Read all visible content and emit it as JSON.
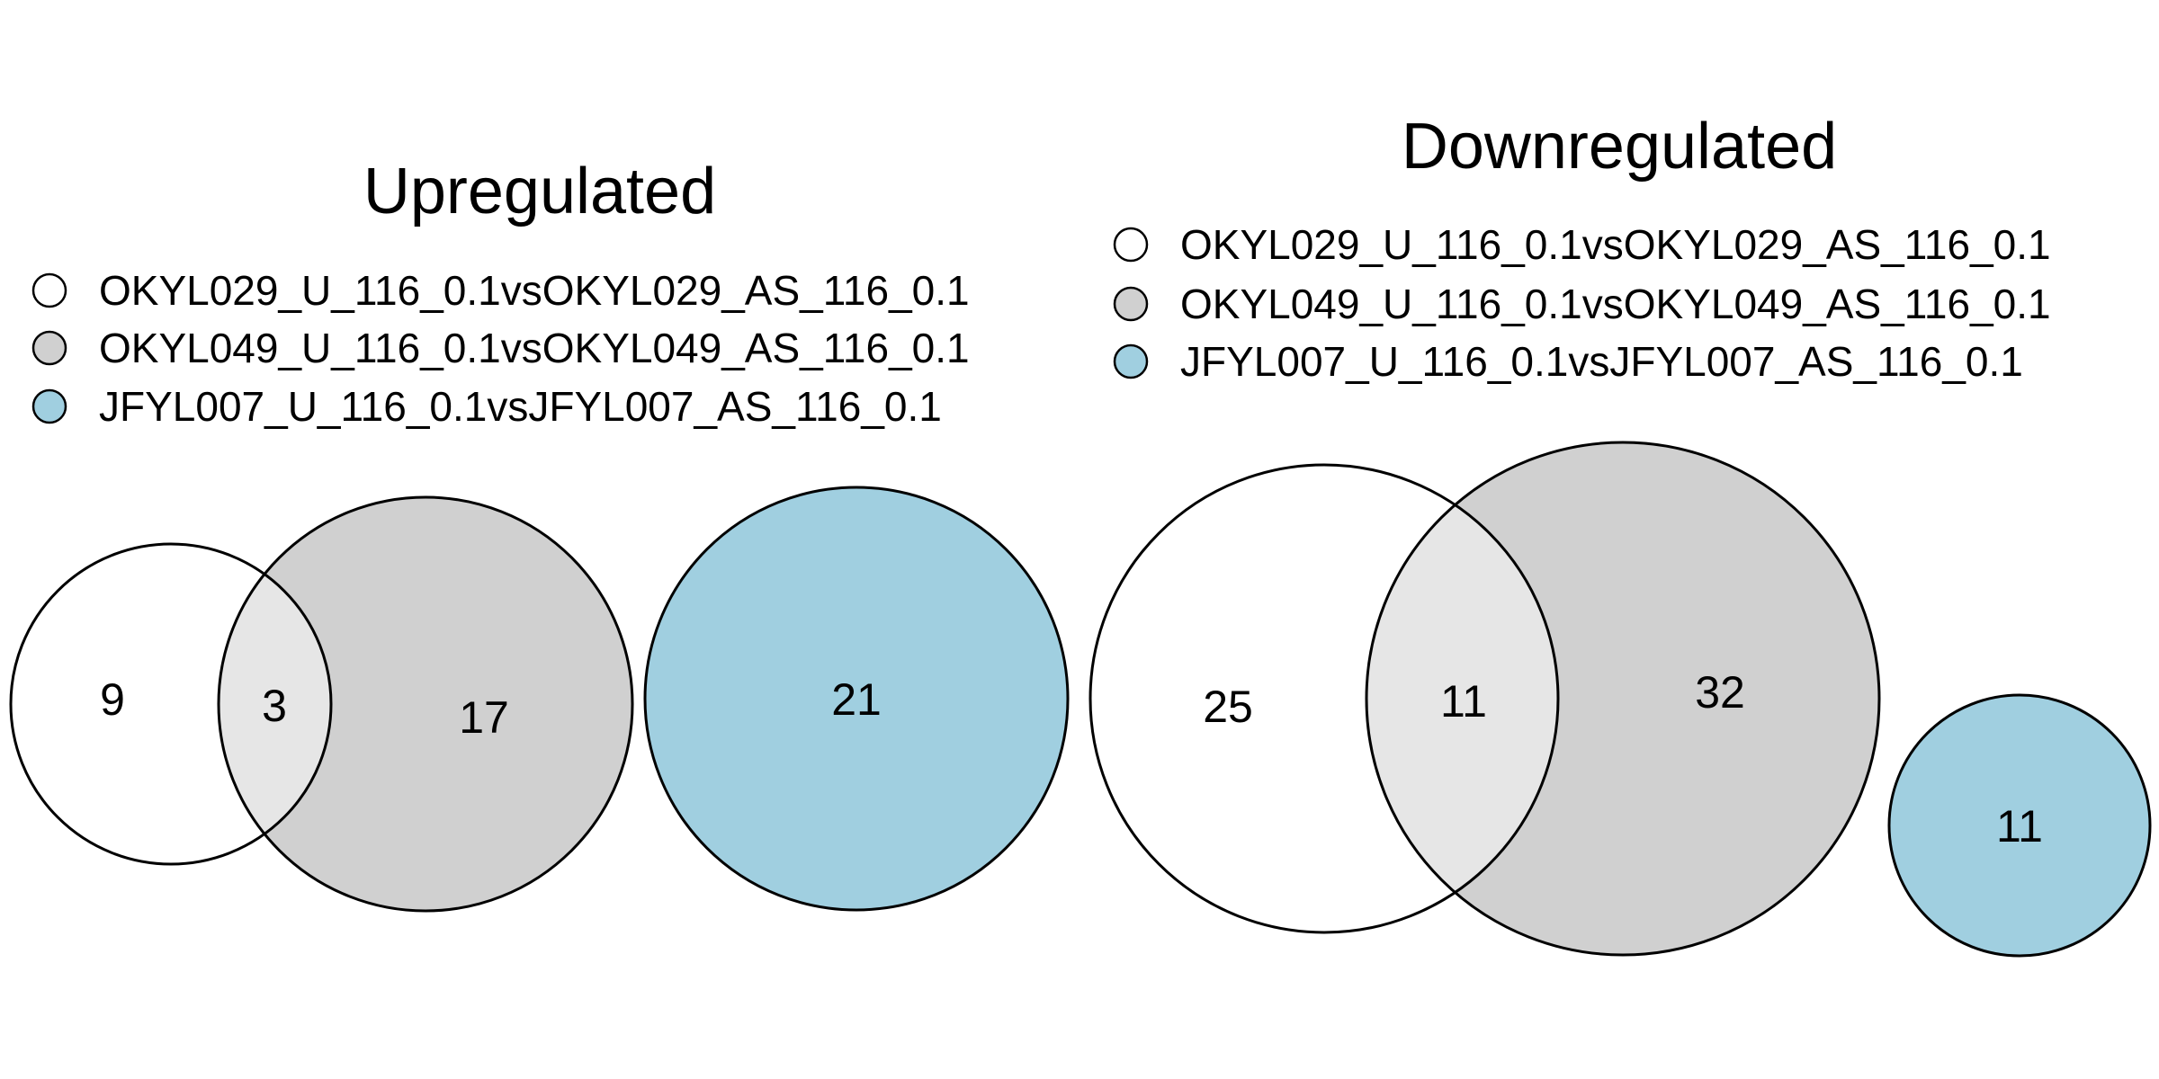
{
  "colors": {
    "set1": "#ffffff",
    "set2": "#d0d0d0",
    "set3": "#a0cfe0",
    "overlap12": "#e6e6e6",
    "outline": "#000000"
  },
  "panels": [
    {
      "title": "Upregulated",
      "legend": [
        "OKYL029_U_116_0.1vsOKYL029_AS_116_0.1",
        "OKYL049_U_116_0.1vsOKYL049_AS_116_0.1",
        "JFYL007_U_116_0.1vsJFYL007_AS_116_0.1"
      ],
      "counts": {
        "only_set1": "9",
        "set1_and_set2": "3",
        "only_set2": "17",
        "only_set3": "21"
      }
    },
    {
      "title": "Downregulated",
      "legend": [
        "OKYL029_U_116_0.1vsOKYL029_AS_116_0.1",
        "OKYL049_U_116_0.1vsOKYL049_AS_116_0.1",
        "JFYL007_U_116_0.1vsJFYL007_AS_116_0.1"
      ],
      "counts": {
        "only_set1": "25",
        "set1_and_set2": "11",
        "only_set2": "32",
        "only_set3": "11"
      }
    }
  ]
}
